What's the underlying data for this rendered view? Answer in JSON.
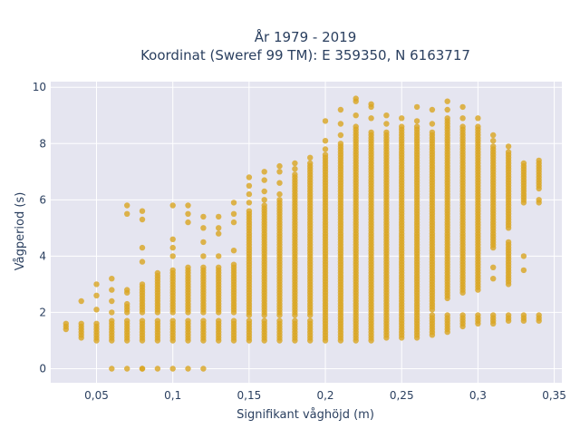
{
  "chart_data": {
    "type": "scatter",
    "title_line1": "År 1979 - 2019",
    "title_line2": "Koordinat (Sweref 99 TM): E 359350, N 6163717",
    "xlabel": "Signifikant våghöjd (m)",
    "ylabel": "Vågperiod (s)",
    "xlim": [
      0.02,
      0.355
    ],
    "ylim": [
      -0.5,
      10.2
    ],
    "x_ticks": [
      {
        "v": 0.05,
        "label": "0,05"
      },
      {
        "v": 0.1,
        "label": "0,1"
      },
      {
        "v": 0.15,
        "label": "0,15"
      },
      {
        "v": 0.2,
        "label": "0,2"
      },
      {
        "v": 0.25,
        "label": "0,25"
      },
      {
        "v": 0.3,
        "label": "0,3"
      },
      {
        "v": 0.35,
        "label": "0,35"
      }
    ],
    "y_ticks": [
      {
        "v": 0,
        "label": "0"
      },
      {
        "v": 2,
        "label": "2"
      },
      {
        "v": 4,
        "label": "4"
      },
      {
        "v": 6,
        "label": "6"
      },
      {
        "v": 8,
        "label": "8"
      },
      {
        "v": 10,
        "label": "10"
      }
    ],
    "grid": true,
    "marker_color": "#DAA520",
    "plot_bg": "#E5E5F0",
    "columns": [
      {
        "x": 0.03,
        "bands": [
          [
            1.4,
            1.6
          ]
        ],
        "points": []
      },
      {
        "x": 0.04,
        "bands": [
          [
            1.1,
            1.6
          ]
        ],
        "points": [
          2.4
        ]
      },
      {
        "x": 0.05,
        "bands": [
          [
            1.0,
            1.6
          ]
        ],
        "points": [
          2.1,
          2.6,
          3.0
        ]
      },
      {
        "x": 0.06,
        "bands": [
          [
            1.0,
            1.7
          ]
        ],
        "points": [
          0.0,
          2.0,
          2.4,
          2.8,
          3.2
        ]
      },
      {
        "x": 0.07,
        "bands": [
          [
            1.0,
            1.7
          ],
          [
            2.0,
            2.3
          ]
        ],
        "points": [
          0.0,
          2.7,
          2.8,
          5.5,
          5.8
        ]
      },
      {
        "x": 0.08,
        "bands": [
          [
            1.0,
            1.7
          ],
          [
            2.0,
            3.0
          ]
        ],
        "points": [
          0.0,
          0.0,
          3.8,
          4.3,
          5.3,
          5.6
        ]
      },
      {
        "x": 0.09,
        "bands": [
          [
            1.0,
            1.7
          ],
          [
            2.0,
            3.4
          ]
        ],
        "points": [
          0.0
        ]
      },
      {
        "x": 0.1,
        "bands": [
          [
            1.0,
            1.7
          ],
          [
            2.0,
            3.5
          ]
        ],
        "points": [
          0.0,
          4.0,
          4.3,
          4.6,
          5.8
        ]
      },
      {
        "x": 0.11,
        "bands": [
          [
            1.0,
            1.7
          ],
          [
            2.0,
            3.6
          ]
        ],
        "points": [
          0.0,
          5.2,
          5.5,
          5.8
        ]
      },
      {
        "x": 0.12,
        "bands": [
          [
            1.0,
            1.7
          ],
          [
            2.0,
            3.6
          ]
        ],
        "points": [
          0.0,
          4.0,
          4.5,
          5.0,
          5.4
        ]
      },
      {
        "x": 0.13,
        "bands": [
          [
            1.0,
            1.7
          ],
          [
            2.0,
            3.6
          ]
        ],
        "points": [
          4.0,
          4.8,
          5.0,
          5.4
        ]
      },
      {
        "x": 0.14,
        "bands": [
          [
            1.0,
            1.7
          ],
          [
            2.0,
            3.7
          ]
        ],
        "points": [
          4.2,
          5.2,
          5.5,
          5.9
        ]
      },
      {
        "x": 0.15,
        "bands": [
          [
            1.0,
            1.7
          ],
          [
            1.9,
            5.6
          ]
        ],
        "points": [
          5.9,
          6.2,
          6.5,
          6.8
        ]
      },
      {
        "x": 0.16,
        "bands": [
          [
            1.0,
            1.7
          ],
          [
            1.9,
            5.8
          ]
        ],
        "points": [
          6.0,
          6.3,
          6.7,
          7.0
        ]
      },
      {
        "x": 0.17,
        "bands": [
          [
            1.0,
            1.7
          ],
          [
            1.9,
            6.0
          ]
        ],
        "points": [
          6.2,
          6.6,
          7.0,
          7.2
        ]
      },
      {
        "x": 0.18,
        "bands": [
          [
            1.0,
            1.7
          ],
          [
            1.9,
            6.9
          ]
        ],
        "points": [
          7.1,
          7.3
        ]
      },
      {
        "x": 0.19,
        "bands": [
          [
            1.0,
            1.7
          ],
          [
            1.9,
            7.3
          ]
        ],
        "points": [
          7.5
        ]
      },
      {
        "x": 0.2,
        "bands": [
          [
            1.0,
            1.8
          ],
          [
            1.9,
            7.6
          ]
        ],
        "points": [
          7.8,
          8.1,
          8.8
        ]
      },
      {
        "x": 0.21,
        "bands": [
          [
            1.0,
            1.8
          ],
          [
            1.9,
            8.0
          ]
        ],
        "points": [
          8.3,
          8.7,
          9.2
        ]
      },
      {
        "x": 0.22,
        "bands": [
          [
            1.0,
            1.8
          ],
          [
            1.9,
            8.6
          ]
        ],
        "points": [
          9.0,
          9.5,
          9.6
        ]
      },
      {
        "x": 0.23,
        "bands": [
          [
            1.0,
            1.8
          ],
          [
            1.9,
            8.4
          ]
        ],
        "points": [
          8.9,
          9.3,
          9.4
        ]
      },
      {
        "x": 0.24,
        "bands": [
          [
            1.1,
            1.8
          ],
          [
            1.9,
            8.4
          ]
        ],
        "points": [
          8.7,
          9.0
        ]
      },
      {
        "x": 0.25,
        "bands": [
          [
            1.1,
            1.9
          ],
          [
            2.0,
            8.6
          ]
        ],
        "points": [
          8.9
        ]
      },
      {
        "x": 0.26,
        "bands": [
          [
            1.1,
            1.9
          ],
          [
            2.0,
            8.6
          ]
        ],
        "points": [
          8.8,
          9.3
        ]
      },
      {
        "x": 0.27,
        "bands": [
          [
            1.2,
            1.9
          ],
          [
            2.1,
            8.4
          ]
        ],
        "points": [
          8.7,
          9.2
        ]
      },
      {
        "x": 0.28,
        "bands": [
          [
            1.3,
            1.9
          ],
          [
            2.5,
            8.9
          ]
        ],
        "points": [
          9.2,
          9.5
        ]
      },
      {
        "x": 0.29,
        "bands": [
          [
            1.5,
            1.9
          ],
          [
            2.7,
            8.6
          ]
        ],
        "points": [
          8.9,
          9.3
        ]
      },
      {
        "x": 0.3,
        "bands": [
          [
            1.6,
            1.9
          ],
          [
            2.8,
            8.6
          ]
        ],
        "points": [
          8.9
        ]
      },
      {
        "x": 0.31,
        "bands": [
          [
            1.6,
            1.9
          ],
          [
            4.3,
            7.9
          ]
        ],
        "points": [
          8.1,
          8.3,
          3.2,
          3.6
        ]
      },
      {
        "x": 0.32,
        "bands": [
          [
            1.7,
            1.9
          ],
          [
            3.0,
            4.5
          ],
          [
            5.0,
            7.7
          ]
        ],
        "points": [
          7.9
        ]
      },
      {
        "x": 0.33,
        "bands": [
          [
            1.7,
            1.9
          ],
          [
            5.9,
            7.3
          ]
        ],
        "points": [
          3.5,
          4.0
        ]
      },
      {
        "x": 0.34,
        "bands": [
          [
            1.7,
            1.9
          ],
          [
            6.4,
            7.4
          ]
        ],
        "points": [
          5.9,
          6.0
        ]
      }
    ]
  }
}
